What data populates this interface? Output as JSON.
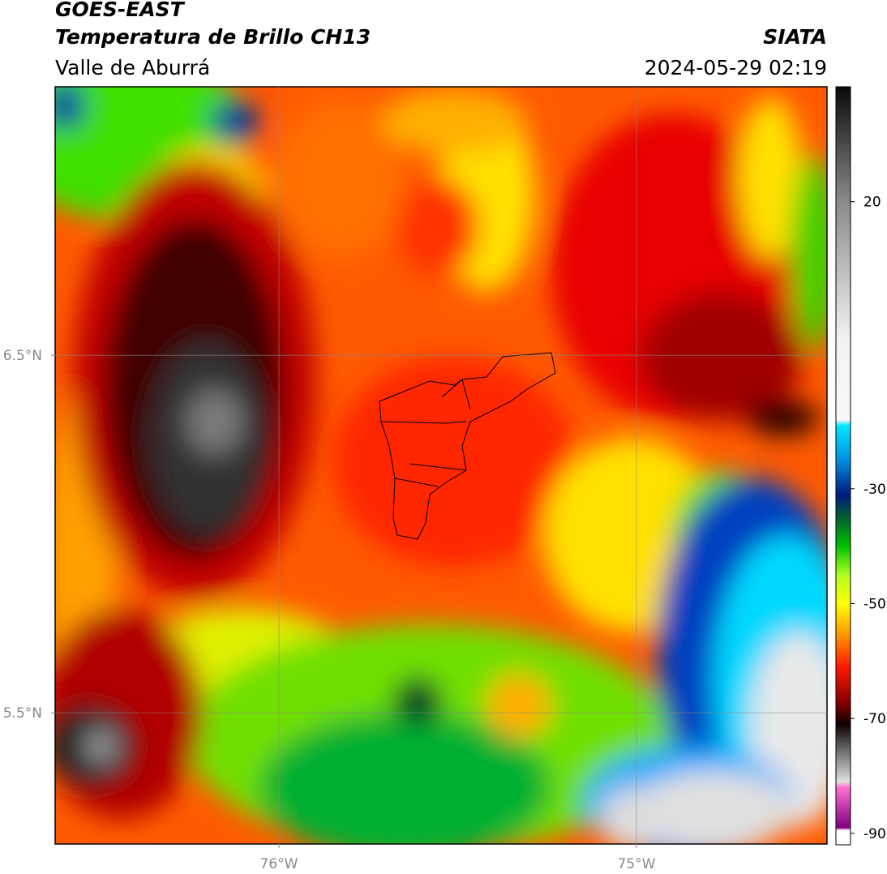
{
  "header": {
    "title": "GOES-EAST",
    "subtitle": "Temperatura de Brillo CH13",
    "region": "Valle de Aburrá",
    "source": "SIATA",
    "datetime": "2024-05-29 02:19"
  },
  "map": {
    "xlim": [
      -76.626,
      -74.467
    ],
    "ylim": [
      5.133,
      7.251
    ],
    "xticks": [
      {
        "value": -76,
        "label": "76°W"
      },
      {
        "value": -75,
        "label": "75°W"
      }
    ],
    "yticks": [
      {
        "value": 5.5,
        "label": "5.5°N"
      },
      {
        "value": 6.5,
        "label": "6.5°N"
      }
    ],
    "grid": true
  },
  "colorbar": {
    "lim": [
      -92,
      40
    ],
    "ticks": [
      -90,
      -70,
      -50,
      -30,
      20
    ],
    "stops": [
      {
        "value": 40,
        "color": "#0a0a0a"
      },
      {
        "value": 20,
        "color": "#8a8a8a"
      },
      {
        "value": -4,
        "color": "#f2f2f2"
      },
      {
        "value": -18,
        "color": "#f8f8f8"
      },
      {
        "value": -19,
        "color": "#00e8ff"
      },
      {
        "value": -25,
        "color": "#0090e0"
      },
      {
        "value": -31,
        "color": "#001a80"
      },
      {
        "value": -35,
        "color": "#006030"
      },
      {
        "value": -40,
        "color": "#00c000"
      },
      {
        "value": -45,
        "color": "#b0ff20"
      },
      {
        "value": -50,
        "color": "#ffff00"
      },
      {
        "value": -55,
        "color": "#ffa000"
      },
      {
        "value": -61,
        "color": "#ff1800"
      },
      {
        "value": -67,
        "color": "#8a0000"
      },
      {
        "value": -71,
        "color": "#100000"
      },
      {
        "value": -75,
        "color": "#606060"
      },
      {
        "value": -81,
        "color": "#e0e0e0"
      },
      {
        "value": -82,
        "color": "#ff70d0"
      },
      {
        "value": -89,
        "color": "#800080"
      },
      {
        "value": -89.5,
        "color": "#ffffff"
      },
      {
        "value": -92,
        "color": "#ffffff"
      }
    ]
  }
}
